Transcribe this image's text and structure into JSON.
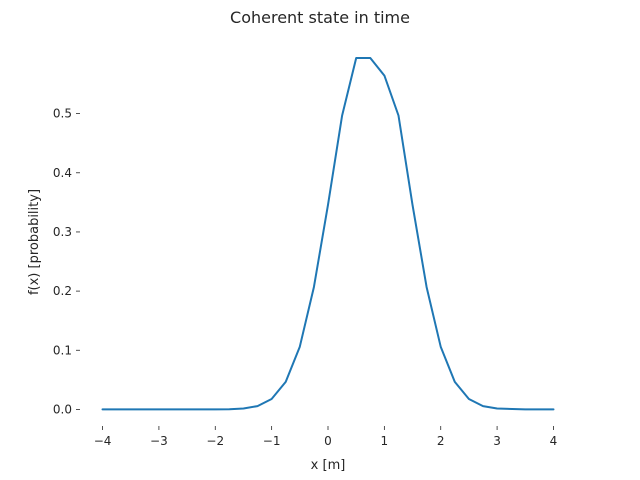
{
  "chart_data": {
    "type": "line",
    "title": "Coherent state in time",
    "xlabel": "x [m]",
    "ylabel": "f(x) [probability]",
    "xlim": [
      -4.4,
      4.4
    ],
    "ylim": [
      -0.028,
      0.594
    ],
    "xticks": [
      -4,
      -3,
      -2,
      -1,
      0,
      1,
      2,
      3,
      4
    ],
    "xtick_labels": [
      "−4",
      "−3",
      "−2",
      "−1",
      "0",
      "1",
      "2",
      "3",
      "4"
    ],
    "yticks": [
      0.0,
      0.1,
      0.2,
      0.3,
      0.4,
      0.5
    ],
    "ytick_labels": [
      "0.0",
      "0.1",
      "0.2",
      "0.3",
      "0.4",
      "0.5"
    ],
    "grid": false,
    "series": [
      {
        "color": "#1f77b4",
        "x": [
          -4.0,
          -3.5,
          -3.0,
          -2.5,
          -2.0,
          -1.75,
          -1.5,
          -1.25,
          -1.0,
          -0.75,
          -0.5,
          -0.25,
          0.0,
          0.25,
          0.5,
          0.75,
          1.0,
          1.25,
          1.5,
          1.75,
          2.0,
          2.25,
          2.5,
          2.75,
          3.0,
          3.5,
          4.0
        ],
        "y": [
          0.0,
          0.0,
          0.0,
          0.0,
          0.0001,
          0.0003,
          0.0016,
          0.0057,
          0.0176,
          0.0466,
          0.1061,
          0.2067,
          0.3458,
          0.4966,
          0.6125,
          0.649,
          0.5642,
          0.4966,
          0.3458,
          0.2067,
          0.1061,
          0.0466,
          0.0176,
          0.0057,
          0.0016,
          0.0001,
          0.0
        ]
      }
    ]
  }
}
